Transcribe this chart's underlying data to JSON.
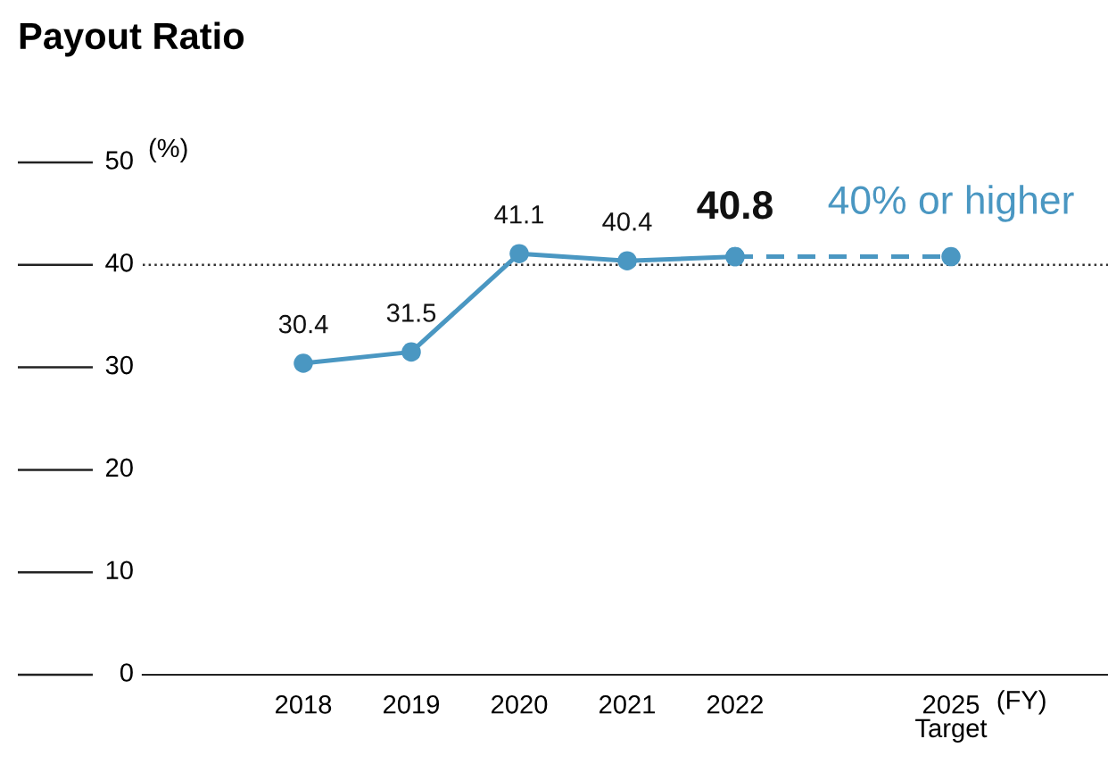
{
  "chart_data": {
    "type": "line",
    "title": "Payout Ratio",
    "ylabel": "(%)",
    "xlabel": "(FY)",
    "categories": [
      "2018",
      "2019",
      "2020",
      "2021",
      "2022",
      null,
      "2025"
    ],
    "series": [
      {
        "color": "#4a97c2",
        "values": [
          30.4,
          31.5,
          41.1,
          40.4,
          40.8,
          null,
          null
        ],
        "value_labels": [
          "30.4",
          "31.5",
          "41.1",
          "40.4",
          "40.8",
          null,
          null
        ],
        "line_style": "solid"
      },
      {
        "color": "#4a97c2",
        "values": [
          null,
          null,
          null,
          null,
          40.8,
          null,
          40.8
        ],
        "line_style": "dashed"
      }
    ],
    "marker": "circle",
    "ylim": [
      0,
      50
    ],
    "yticks": [
      0,
      10,
      20,
      30,
      40,
      50
    ],
    "ref_lines": [
      {
        "axis": "y",
        "value": 40,
        "line_style": "dotted",
        "color": "#333333"
      }
    ],
    "annotations": [
      "40% or higher",
      "Target"
    ],
    "grid": false,
    "legend": false
  }
}
